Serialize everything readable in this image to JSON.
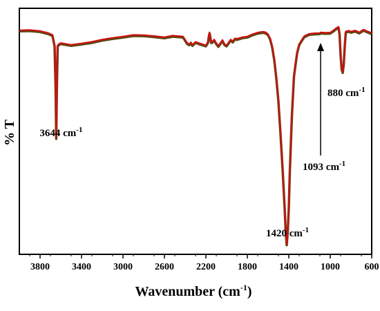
{
  "chart_data": {
    "type": "line",
    "xlabel": "Wavenumber (cm",
    "xlabel_sup": "-1",
    "xlabel_close": ")",
    "ylabel": "% T",
    "xlim": [
      4000,
      600
    ],
    "ylim": [
      0,
      100
    ],
    "x_ticks": [
      3800,
      3400,
      3000,
      2600,
      2200,
      1800,
      1400,
      1000,
      600
    ],
    "grid": false,
    "legend": "none",
    "line_color": "#cc1111",
    "shadow_color": "#5a4a14",
    "x": [
      4000,
      3900,
      3800,
      3720,
      3680,
      3660,
      3650,
      3644,
      3638,
      3630,
      3620,
      3600,
      3500,
      3400,
      3300,
      3200,
      3100,
      3000,
      2900,
      2800,
      2700,
      2600,
      2520,
      2420,
      2380,
      2360,
      2345,
      2330,
      2300,
      2250,
      2200,
      2180,
      2172,
      2165,
      2158,
      2150,
      2140,
      2120,
      2100,
      2080,
      2060,
      2040,
      2020,
      2000,
      1980,
      1960,
      1940,
      1920,
      1900,
      1870,
      1850,
      1800,
      1750,
      1700,
      1660,
      1640,
      1620,
      1600,
      1580,
      1560,
      1540,
      1520,
      1500,
      1480,
      1460,
      1440,
      1430,
      1420,
      1410,
      1400,
      1390,
      1370,
      1350,
      1320,
      1300,
      1280,
      1250,
      1200,
      1150,
      1100,
      1093,
      1050,
      1000,
      960,
      940,
      920,
      910,
      900,
      890,
      880,
      870,
      860,
      850,
      820,
      800,
      760,
      720,
      680,
      640,
      600
    ],
    "y": [
      94.5,
      94.6,
      94.2,
      93.3,
      92.5,
      88,
      70,
      48,
      70,
      88,
      88.5,
      89,
      88.2,
      88.8,
      89.5,
      90.5,
      91.2,
      91.8,
      92.5,
      92.4,
      92,
      91.5,
      92.2,
      91.8,
      89,
      88.5,
      89.3,
      88.2,
      89.5,
      88.7,
      88,
      89.5,
      92,
      93.6,
      92.2,
      89.5,
      89.5,
      90.5,
      89,
      87.8,
      89,
      90.3,
      88.5,
      88,
      89.3,
      90.5,
      89.7,
      91,
      90.8,
      91.2,
      91.5,
      91.8,
      92.8,
      93.5,
      93.8,
      93.8,
      93.5,
      92.8,
      91,
      87.5,
      82,
      74,
      64,
      50,
      35,
      18,
      8,
      2,
      8,
      18,
      34,
      58,
      75,
      85,
      88.5,
      90,
      92,
      93,
      93.2,
      93.3,
      93.6,
      93.4,
      93.5,
      94.8,
      95.5,
      96,
      93,
      84,
      78,
      76.5,
      80,
      88,
      94,
      94.3,
      93.9,
      94.4,
      93.6,
      94.8,
      94,
      93.3
    ],
    "annotations": [
      {
        "label": "3644 cm",
        "sup": "-1",
        "x": 3644,
        "y": 48
      },
      {
        "label": "1420 cm",
        "sup": "-1",
        "x": 1420,
        "y": 2
      },
      {
        "label": "880 cm",
        "sup": "-1",
        "x": 880,
        "y": 76.5
      },
      {
        "label": "1093 cm",
        "sup": "-1",
        "x": 1093,
        "y": 93.6,
        "arrow": true
      }
    ]
  }
}
